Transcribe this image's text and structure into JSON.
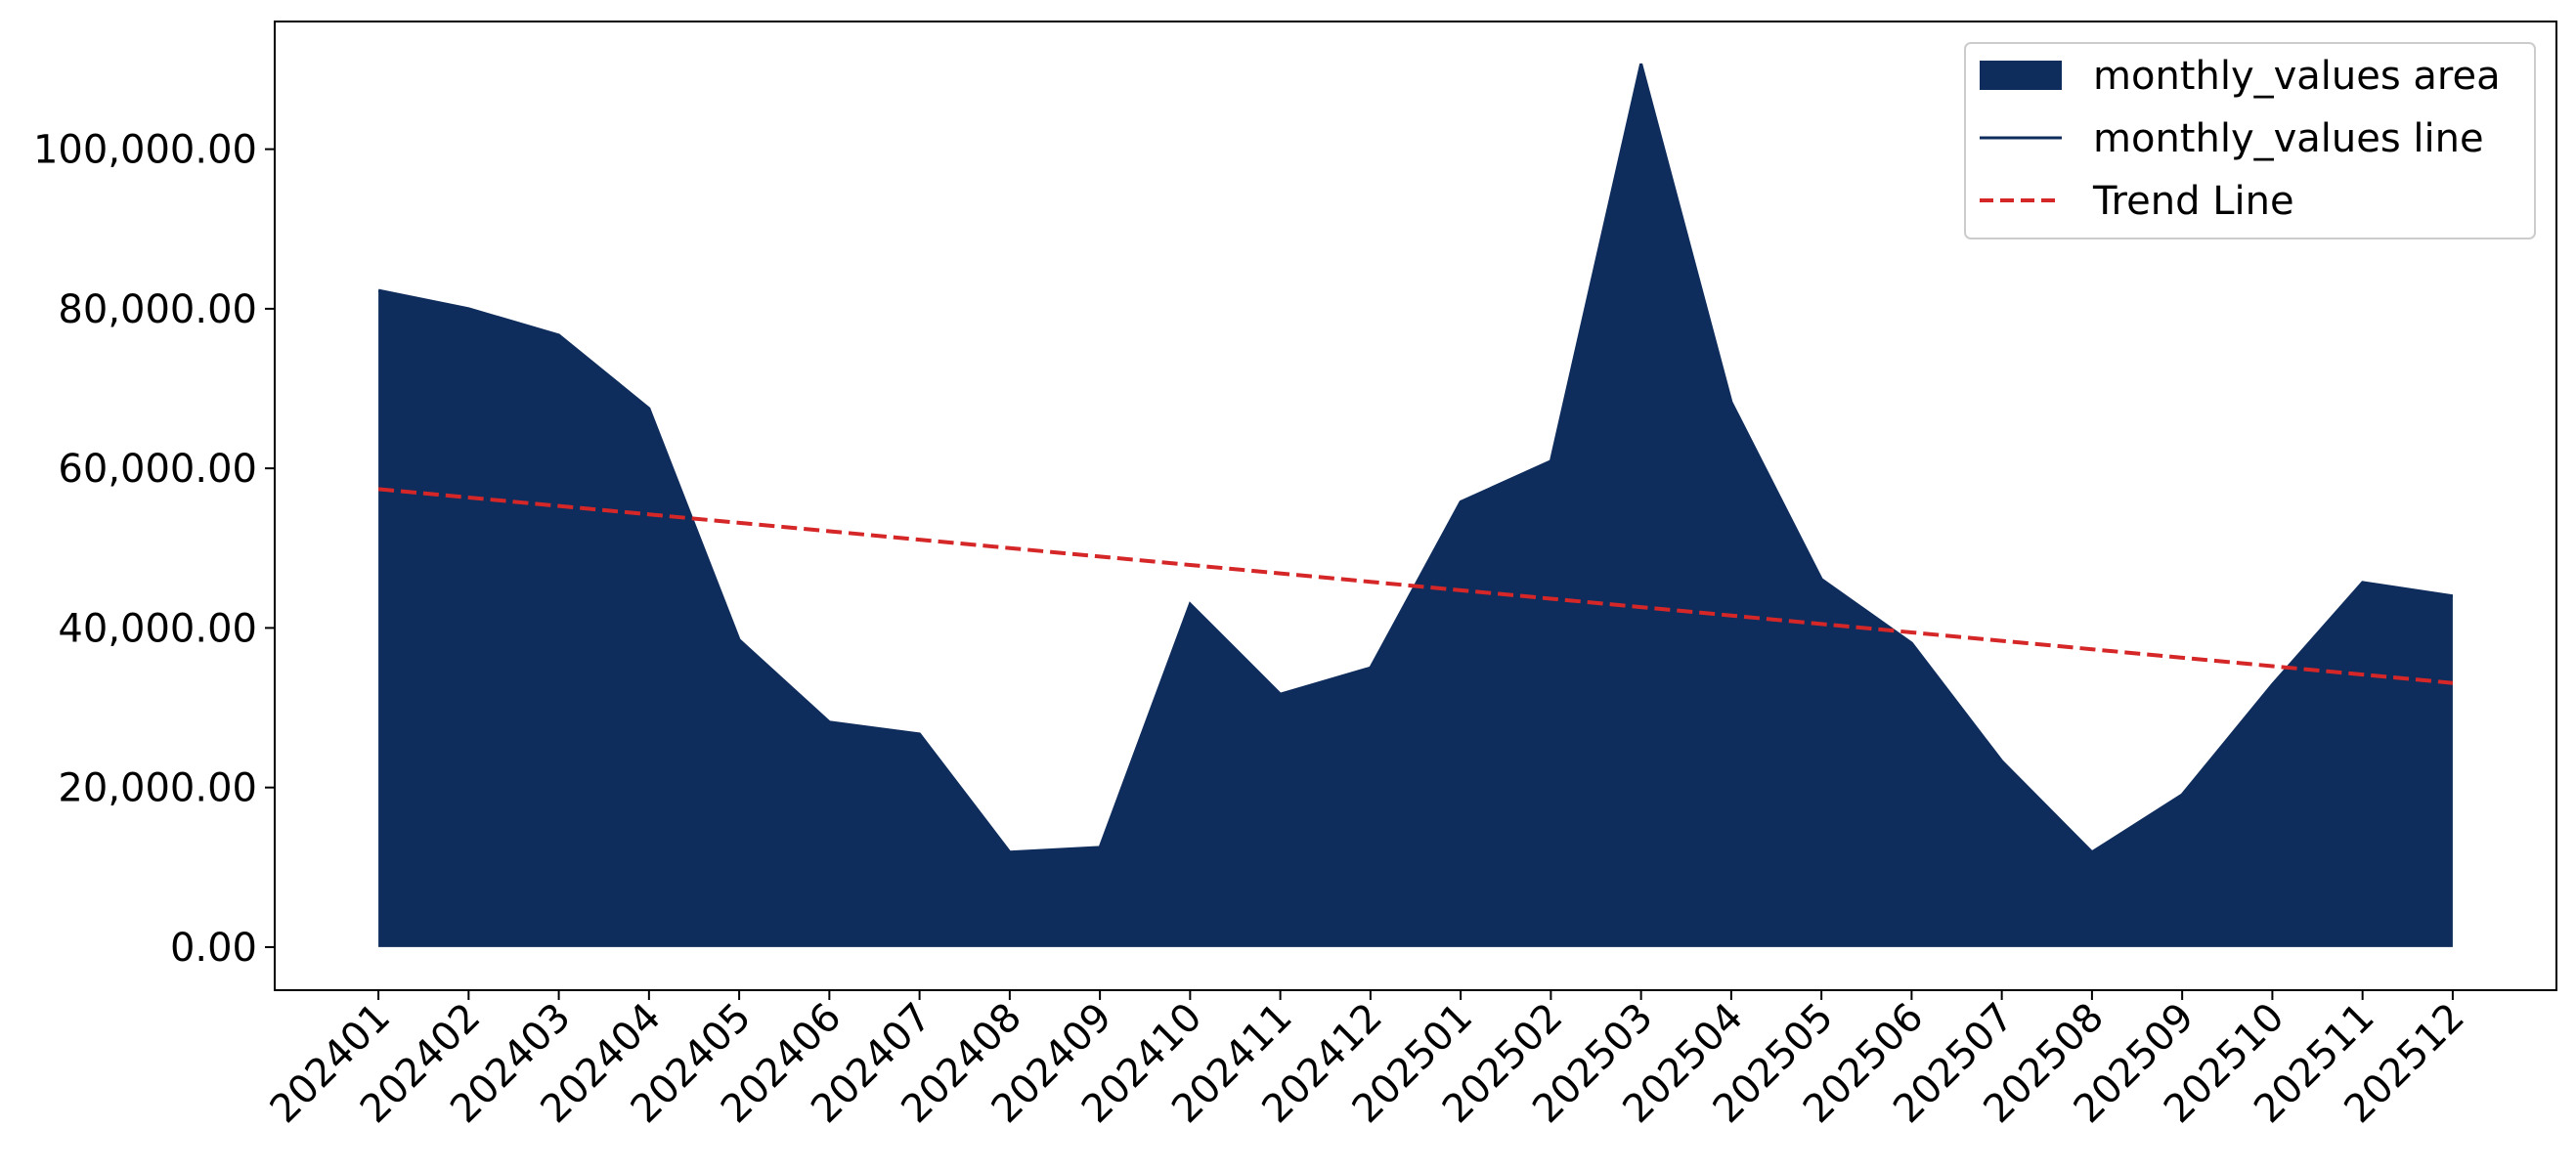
{
  "chart_data": {
    "type": "area",
    "categories": [
      "202401",
      "202402",
      "202403",
      "202404",
      "202405",
      "202406",
      "202407",
      "202408",
      "202409",
      "202410",
      "202411",
      "202412",
      "202501",
      "202502",
      "202503",
      "202504",
      "202505",
      "202506",
      "202507",
      "202508",
      "202509",
      "202510",
      "202511",
      "202512"
    ],
    "series": [
      {
        "name": "monthly_values area",
        "color": "#0e2c5c",
        "style": "area",
        "values": [
          82300,
          80000,
          76700,
          67500,
          38500,
          28200,
          26700,
          11900,
          12500,
          43000,
          31700,
          35000,
          55800,
          60900,
          110700,
          68300,
          46100,
          38100,
          23300,
          11900,
          19100,
          32900,
          45700,
          44000
        ]
      },
      {
        "name": "monthly_values line",
        "color": "#0e2c5c",
        "style": "solid",
        "values": [
          82300,
          80000,
          76700,
          67500,
          38500,
          28200,
          26700,
          11900,
          12500,
          43000,
          31700,
          35000,
          55800,
          60900,
          110700,
          68300,
          46100,
          38100,
          23300,
          11900,
          19100,
          32900,
          45700,
          44000
        ]
      },
      {
        "name": "Trend Line",
        "color": "#d62728",
        "style": "dashed",
        "values": [
          57400,
          56343,
          55287,
          54230,
          53174,
          52117,
          51061,
          50004,
          48948,
          47891,
          46835,
          45778,
          44722,
          43665,
          42609,
          41552,
          40496,
          39439,
          38383,
          37326,
          36270,
          35213,
          34157,
          33100
        ]
      }
    ],
    "ylim": [
      -5400,
      116000
    ],
    "yticks": [
      {
        "value": 0,
        "label": "0.00"
      },
      {
        "value": 20000,
        "label": "20,000.00"
      },
      {
        "value": 40000,
        "label": "40,000.00"
      },
      {
        "value": 60000,
        "label": "60,000.00"
      },
      {
        "value": 80000,
        "label": "80,000.00"
      },
      {
        "value": 100000,
        "label": "100,000.00"
      }
    ],
    "legend": "upper right"
  }
}
